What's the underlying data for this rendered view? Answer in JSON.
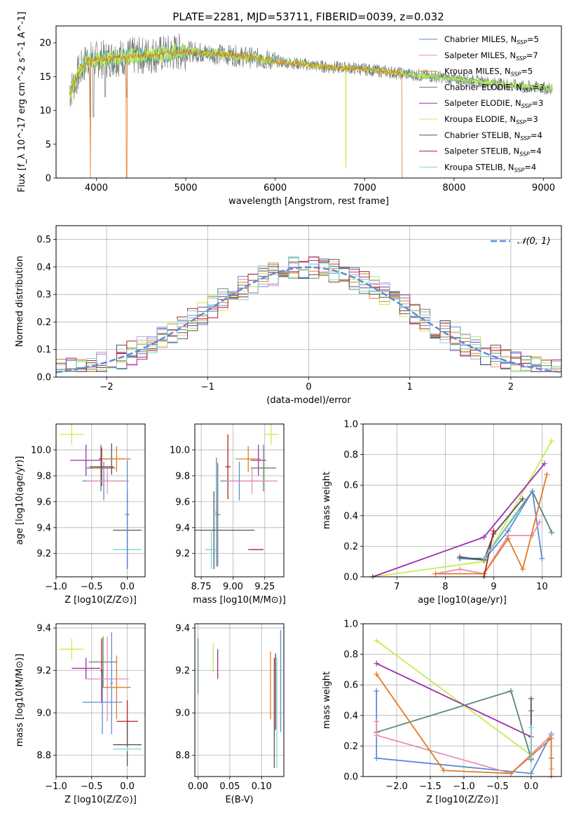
{
  "figure_title": "PLATE=2281, MJD=53711, FIBERID=0039, z=0.032",
  "colors": {
    "Chabrier MILES": "#5b8bd6",
    "Salpeter MILES": "#e58fb6",
    "Kroupa MILES": "#e07b28",
    "Chabrier ELODIE": "#5a8a6a",
    "Salpeter ELODIE": "#9b2fae",
    "Kroupa ELODIE": "#c8ec52",
    "Chabrier STELIB": "#555555",
    "Salpeter STELIB": "#b22222",
    "Kroupa STELIB": "#7ad6d6"
  },
  "chart_data": [
    {
      "id": "spectrum",
      "type": "line",
      "title": "PLATE=2281, MJD=53711, FIBERID=0039, z=0.032",
      "xlabel": "wavelength [Angstrom, rest frame]",
      "ylabel": "Flux [f_λ 10^-17 erg cm^-2 s^-1 A^-1]",
      "xlim": [
        3550,
        9200
      ],
      "ylim": [
        0,
        22.5
      ],
      "xticks": [
        4000,
        5000,
        6000,
        7000,
        8000,
        9000
      ],
      "yticks": [
        0,
        5,
        10,
        15,
        20
      ],
      "legend_position": "top-right",
      "data_color": "#777777",
      "series": [
        {
          "name": "Chabrier MILES",
          "nssp": "5"
        },
        {
          "name": "Salpeter MILES",
          "nssp": "7"
        },
        {
          "name": "Kroupa MILES",
          "nssp": "5"
        },
        {
          "name": "Chabrier ELODIE",
          "nssp": "3"
        },
        {
          "name": "Salpeter ELODIE",
          "nssp": "3"
        },
        {
          "name": "Kroupa ELODIE",
          "nssp": "3"
        },
        {
          "name": "Chabrier STELIB",
          "nssp": "4"
        },
        {
          "name": "Salpeter STELIB",
          "nssp": "4"
        },
        {
          "name": "Kroupa STELIB",
          "nssp": "4"
        }
      ],
      "continuum": {
        "x": [
          3700,
          3800,
          3900,
          4000,
          4100,
          4200,
          4400,
          4600,
          4800,
          5000,
          5200,
          5400,
          5600,
          5800,
          6000,
          6200,
          6400,
          6600,
          6800,
          7000,
          7200,
          7400,
          7600,
          7800,
          8000,
          8200,
          8400,
          8600,
          8800,
          9000,
          9100
        ],
        "y": [
          12.5,
          15.5,
          17.5,
          17.5,
          17.6,
          17.8,
          18.0,
          18.2,
          18.4,
          18.8,
          18.5,
          18.3,
          18.0,
          17.7,
          17.3,
          17.0,
          16.7,
          16.4,
          16.3,
          16.1,
          15.8,
          15.5,
          15.2,
          15.0,
          14.7,
          14.4,
          14.1,
          13.8,
          13.5,
          13.3,
          13.2
        ]
      },
      "drops": [
        {
          "x": 3933,
          "y": 0,
          "series": "Kroupa MILES"
        },
        {
          "x": 4340,
          "y": 0,
          "series": "Kroupa MILES"
        },
        {
          "x": 6790,
          "y": 1.5,
          "series": "Kroupa ELODIE"
        },
        {
          "x": 7420,
          "y": 0,
          "series": "Kroupa MILES"
        }
      ]
    },
    {
      "id": "residuals",
      "type": "area",
      "xlabel": "(data-model)/error",
      "ylabel": "Normed distribution",
      "xlim": [
        -2.5,
        2.5
      ],
      "ylim": [
        0,
        0.55
      ],
      "xticks": [
        -2,
        -1,
        0,
        1,
        2
      ],
      "yticks": [
        0,
        0.1,
        0.2,
        0.3,
        0.4,
        0.5
      ],
      "legend_position": "top-right",
      "legend": "𝒩(0, 1)",
      "gaussian_color": "#5b8bd6",
      "grid": true
    },
    {
      "id": "age-vs-Z",
      "type": "scatter",
      "xlabel": "Z [log10(Z/Z⊙)]",
      "ylabel": "age [log10(age/yr)]",
      "xlim": [
        -1.0,
        0.25
      ],
      "ylim": [
        9.02,
        10.2
      ],
      "xticks": [
        -1.0,
        -0.5,
        0.0
      ],
      "yticks": [
        9.2,
        9.4,
        9.6,
        9.8,
        10.0
      ],
      "grid": true,
      "points": [
        {
          "series": "Kroupa ELODIE",
          "x": -0.78,
          "xerr": 0.17,
          "y": 10.12,
          "yerr": 0.08
        },
        {
          "series": "Salpeter ELODIE",
          "x": -0.58,
          "xerr": 0.22,
          "y": 9.92,
          "yerr": 0.12
        },
        {
          "series": "Chabrier ELODIE",
          "x": -0.37,
          "xerr": 0.2,
          "y": 9.86,
          "yerr": 0.18
        },
        {
          "series": "Salpeter STELIB",
          "x": -0.36,
          "xerr": 0.17,
          "y": 9.87,
          "yerr": 0.15
        },
        {
          "series": "Chabrier MILES",
          "x": -0.33,
          "xerr": 0.3,
          "y": 9.76,
          "yerr": 0.15
        },
        {
          "series": "Salpeter MILES",
          "x": -0.28,
          "xerr": 0.3,
          "y": 9.76,
          "yerr": 0.1
        },
        {
          "series": "Chabrier STELIB",
          "x": -0.22,
          "xerr": 0.18,
          "y": 9.93,
          "yerr": 0.12
        },
        {
          "series": "Kroupa MILES",
          "x": -0.15,
          "xerr": 0.2,
          "y": 9.93,
          "yerr": 0.1
        },
        {
          "series": "Kroupa STELIB",
          "x": 0.0,
          "xerr": 0.2,
          "y": 9.23,
          "yerr": 0.15
        },
        {
          "series": "Chabrier STELIB",
          "x": 0.0,
          "xerr": 0.2,
          "y": 9.38,
          "yerr": 0.3
        },
        {
          "series": "Chabrier MILES",
          "x": 0.0,
          "xerr": 0.03,
          "y": 9.5,
          "yerr": 0.42
        }
      ]
    },
    {
      "id": "age-vs-mass",
      "type": "scatter",
      "xlabel": "mass [log10(M/M⊙)]",
      "ylabel": "",
      "xlim": [
        8.7,
        9.4
      ],
      "ylim": [
        9.02,
        10.2
      ],
      "xticks": [
        8.75,
        9.0,
        9.25
      ],
      "yticks": [
        9.2,
        9.4,
        9.6,
        9.8,
        10.0
      ],
      "grid": true,
      "points": [
        {
          "series": "Kroupa ELODIE",
          "x": 9.3,
          "xerr": 0.06,
          "y": 10.12,
          "yerr": 0.08
        },
        {
          "series": "Salpeter ELODIE",
          "x": 9.2,
          "xerr": 0.06,
          "y": 9.92,
          "yerr": 0.12
        },
        {
          "series": "Chabrier ELODIE",
          "x": 9.24,
          "xerr": 0.1,
          "y": 9.86,
          "yerr": 0.18
        },
        {
          "series": "Salpeter STELIB",
          "x": 8.96,
          "xerr": 0.02,
          "y": 9.87,
          "yerr": 0.25
        },
        {
          "series": "Chabrier MILES",
          "x": 9.05,
          "xerr": 0.15,
          "y": 9.76,
          "yerr": 0.15
        },
        {
          "series": "Salpeter MILES",
          "x": 9.15,
          "xerr": 0.2,
          "y": 9.76,
          "yerr": 0.1
        },
        {
          "series": "Chabrier STELIB",
          "x": 8.85,
          "xerr": 0.32,
          "y": 9.38,
          "yerr": 0.3
        },
        {
          "series": "Kroupa MILES",
          "x": 9.12,
          "xerr": 0.1,
          "y": 9.93,
          "yerr": 0.1
        },
        {
          "series": "Kroupa STELIB",
          "x": 8.83,
          "xerr": 0.05,
          "y": 9.23,
          "yerr": 0.15
        },
        {
          "series": "Salpeter STELIB",
          "x": 9.18,
          "xerr": 0.06,
          "y": 9.23,
          "yerr": 0.0
        },
        {
          "series": "Chabrier ELODIE",
          "x": 8.88,
          "xerr": 0.02,
          "y": 9.5,
          "yerr": 0.4
        },
        {
          "series": "Chabrier MILES",
          "x": 8.87,
          "xerr": 0.01,
          "y": 9.52,
          "yerr": 0.42
        }
      ]
    },
    {
      "id": "weight-vs-age",
      "type": "line",
      "xlabel": "age [log10(age/yr)]",
      "ylabel": "mass weight",
      "xlim": [
        6.3,
        10.4
      ],
      "ylim": [
        0,
        1.0
      ],
      "xticks": [
        7,
        8,
        9,
        10
      ],
      "yticks": [
        0.0,
        0.2,
        0.4,
        0.6,
        0.8,
        1.0
      ],
      "grid": true,
      "series": [
        {
          "name": "Kroupa ELODIE",
          "x": [
            6.5,
            8.8,
            10.2
          ],
          "y": [
            0.0,
            0.1,
            0.89
          ]
        },
        {
          "name": "Salpeter ELODIE",
          "x": [
            6.5,
            8.8,
            10.05
          ],
          "y": [
            0.0,
            0.26,
            0.74
          ]
        },
        {
          "name": "Chabrier ELODIE",
          "x": [
            8.3,
            8.8,
            9.8,
            10.2
          ],
          "y": [
            0.12,
            0.12,
            0.56,
            0.29
          ]
        },
        {
          "name": "Chabrier MILES",
          "x": [
            8.3,
            8.8,
            9.3,
            9.8,
            10.0
          ],
          "y": [
            0.12,
            0.11,
            0.3,
            0.56,
            0.12
          ]
        },
        {
          "name": "Salpeter MILES",
          "x": [
            7.8,
            8.3,
            8.8,
            9.3,
            9.8,
            9.95
          ],
          "y": [
            0.02,
            0.05,
            0.02,
            0.27,
            0.27,
            0.36
          ]
        },
        {
          "name": "Kroupa MILES",
          "x": [
            7.8,
            8.8,
            9.3,
            9.6,
            10.1
          ],
          "y": [
            0.02,
            0.02,
            0.25,
            0.05,
            0.67
          ]
        },
        {
          "name": "Chabrier STELIB",
          "x": [
            8.3,
            8.8,
            9.0,
            9.6
          ],
          "y": [
            0.13,
            0.11,
            0.28,
            0.51
          ]
        },
        {
          "name": "Salpeter STELIB",
          "x": [
            8.8,
            9.0
          ],
          "y": [
            0.0,
            0.3
          ]
        },
        {
          "name": "Kroupa STELIB",
          "x": [
            8.8,
            9.5
          ],
          "y": [
            0.12,
            0.42
          ]
        }
      ]
    },
    {
      "id": "mass-vs-Z",
      "type": "scatter",
      "xlabel": "Z [log10(Z/Z⊙)]",
      "ylabel": "mass [log10(M/M⊙)]",
      "xlim": [
        -1.0,
        0.25
      ],
      "ylim": [
        8.7,
        9.42
      ],
      "xticks": [
        -1.0,
        -0.5,
        0.0
      ],
      "yticks": [
        8.8,
        9.0,
        9.2,
        9.4
      ],
      "grid": true,
      "points": [
        {
          "series": "Kroupa ELODIE",
          "x": -0.78,
          "xerr": 0.17,
          "y": 9.3,
          "yerr": 0.05
        },
        {
          "series": "Salpeter ELODIE",
          "x": -0.58,
          "xerr": 0.2,
          "y": 9.21,
          "yerr": 0.05
        },
        {
          "series": "Chabrier ELODIE",
          "x": -0.34,
          "xerr": 0.2,
          "y": 9.24,
          "yerr": 0.12
        },
        {
          "series": "Salpeter STELIB",
          "x": -0.36,
          "xerr": 0.02,
          "y": 9.2,
          "yerr": 0.15
        },
        {
          "series": "Salpeter MILES",
          "x": -0.28,
          "xerr": 0.3,
          "y": 9.16,
          "yerr": 0.2
        },
        {
          "series": "Chabrier MILES",
          "x": -0.35,
          "xerr": 0.28,
          "y": 9.05,
          "yerr": 0.15
        },
        {
          "series": "Chabrier MILES",
          "x": -0.22,
          "xerr": 0.02,
          "y": 9.14,
          "yerr": 0.24
        },
        {
          "series": "Kroupa MILES",
          "x": -0.15,
          "xerr": 0.2,
          "y": 9.12,
          "yerr": 0.15
        },
        {
          "series": "Salpeter STELIB",
          "x": 0.0,
          "xerr": 0.15,
          "y": 8.96,
          "yerr": 0.1
        },
        {
          "series": "Chabrier STELIB",
          "x": 0.0,
          "xerr": 0.2,
          "y": 8.85,
          "yerr": 0.1
        },
        {
          "series": "Kroupa STELIB",
          "x": 0.0,
          "xerr": 0.2,
          "y": 8.83,
          "yerr": 0.01
        }
      ]
    },
    {
      "id": "mass-vs-EBV",
      "type": "scatter",
      "xlabel": "E(B-V)",
      "ylabel": "",
      "xlim": [
        -0.005,
        0.135
      ],
      "ylim": [
        8.7,
        9.42
      ],
      "xticks": [
        0.0,
        0.05,
        0.1
      ],
      "yticks": [
        8.8,
        9.0,
        9.2,
        9.4
      ],
      "grid": true,
      "points": [
        {
          "series": "Chabrier ELODIE",
          "x": 0.0,
          "y": 9.22,
          "yerr": 0.13
        },
        {
          "series": "Kroupa ELODIE",
          "x": 0.024,
          "y": 9.26,
          "yerr": 0.07
        },
        {
          "series": "Salpeter ELODIE",
          "x": 0.031,
          "y": 9.23,
          "yerr": 0.07
        },
        {
          "series": "Kroupa MILES",
          "x": 0.114,
          "y": 9.13,
          "yerr": 0.16
        },
        {
          "series": "Salpeter STELIB",
          "x": 0.122,
          "y": 9.1,
          "yerr": 0.18
        },
        {
          "series": "Chabrier STELIB",
          "x": 0.12,
          "y": 9.0,
          "yerr": 0.26
        },
        {
          "series": "Chabrier MILES",
          "x": 0.13,
          "y": 9.15,
          "yerr": 0.24
        },
        {
          "series": "Kroupa STELIB",
          "x": 0.124,
          "y": 9.0,
          "yerr": 0.26
        }
      ]
    },
    {
      "id": "weight-vs-Z",
      "type": "line",
      "xlabel": "Z [log10(Z/Z⊙)]",
      "ylabel": "mass weight",
      "xlim": [
        -2.5,
        0.45
      ],
      "ylim": [
        0,
        1.0
      ],
      "xticks": [
        -2.0,
        -1.5,
        -1.0,
        -0.5,
        0.0
      ],
      "yticks": [
        0.0,
        0.2,
        0.4,
        0.6,
        0.8,
        1.0
      ],
      "grid": true,
      "series": [
        {
          "name": "Kroupa ELODIE",
          "x": [
            -2.3,
            0.0
          ],
          "y": [
            0.89,
            0.14
          ]
        },
        {
          "name": "Salpeter ELODIE",
          "x": [
            -2.3,
            0.0
          ],
          "y": [
            0.74,
            0.26
          ]
        },
        {
          "name": "Chabrier ELODIE",
          "x": [
            -2.3,
            -0.3,
            0.0,
            0.0
          ],
          "y": [
            0.29,
            0.56,
            0.12,
            0.43
          ]
        },
        {
          "name": "Chabrier MILES",
          "x": [
            -2.3,
            -2.3,
            0.0,
            0.3,
            0.3
          ],
          "y": [
            0.56,
            0.12,
            0.02,
            0.28,
            0.12
          ]
        },
        {
          "name": "Salpeter MILES",
          "x": [
            -2.3,
            -2.3,
            -0.3,
            0.3,
            0.3
          ],
          "y": [
            0.36,
            0.27,
            0.02,
            0.27,
            0.05
          ]
        },
        {
          "name": "Kroupa MILES",
          "x": [
            -2.3,
            -1.3,
            -0.3,
            0.3,
            0.3
          ],
          "y": [
            0.67,
            0.04,
            0.02,
            0.25,
            0.0
          ]
        },
        {
          "name": "Chabrier STELIB",
          "x": [
            0.0,
            0.0
          ],
          "y": [
            0.51,
            0.11
          ]
        },
        {
          "name": "Kroupa STELIB",
          "x": [
            0.0,
            0.0
          ],
          "y": [
            0.32,
            0.12
          ]
        }
      ]
    }
  ]
}
